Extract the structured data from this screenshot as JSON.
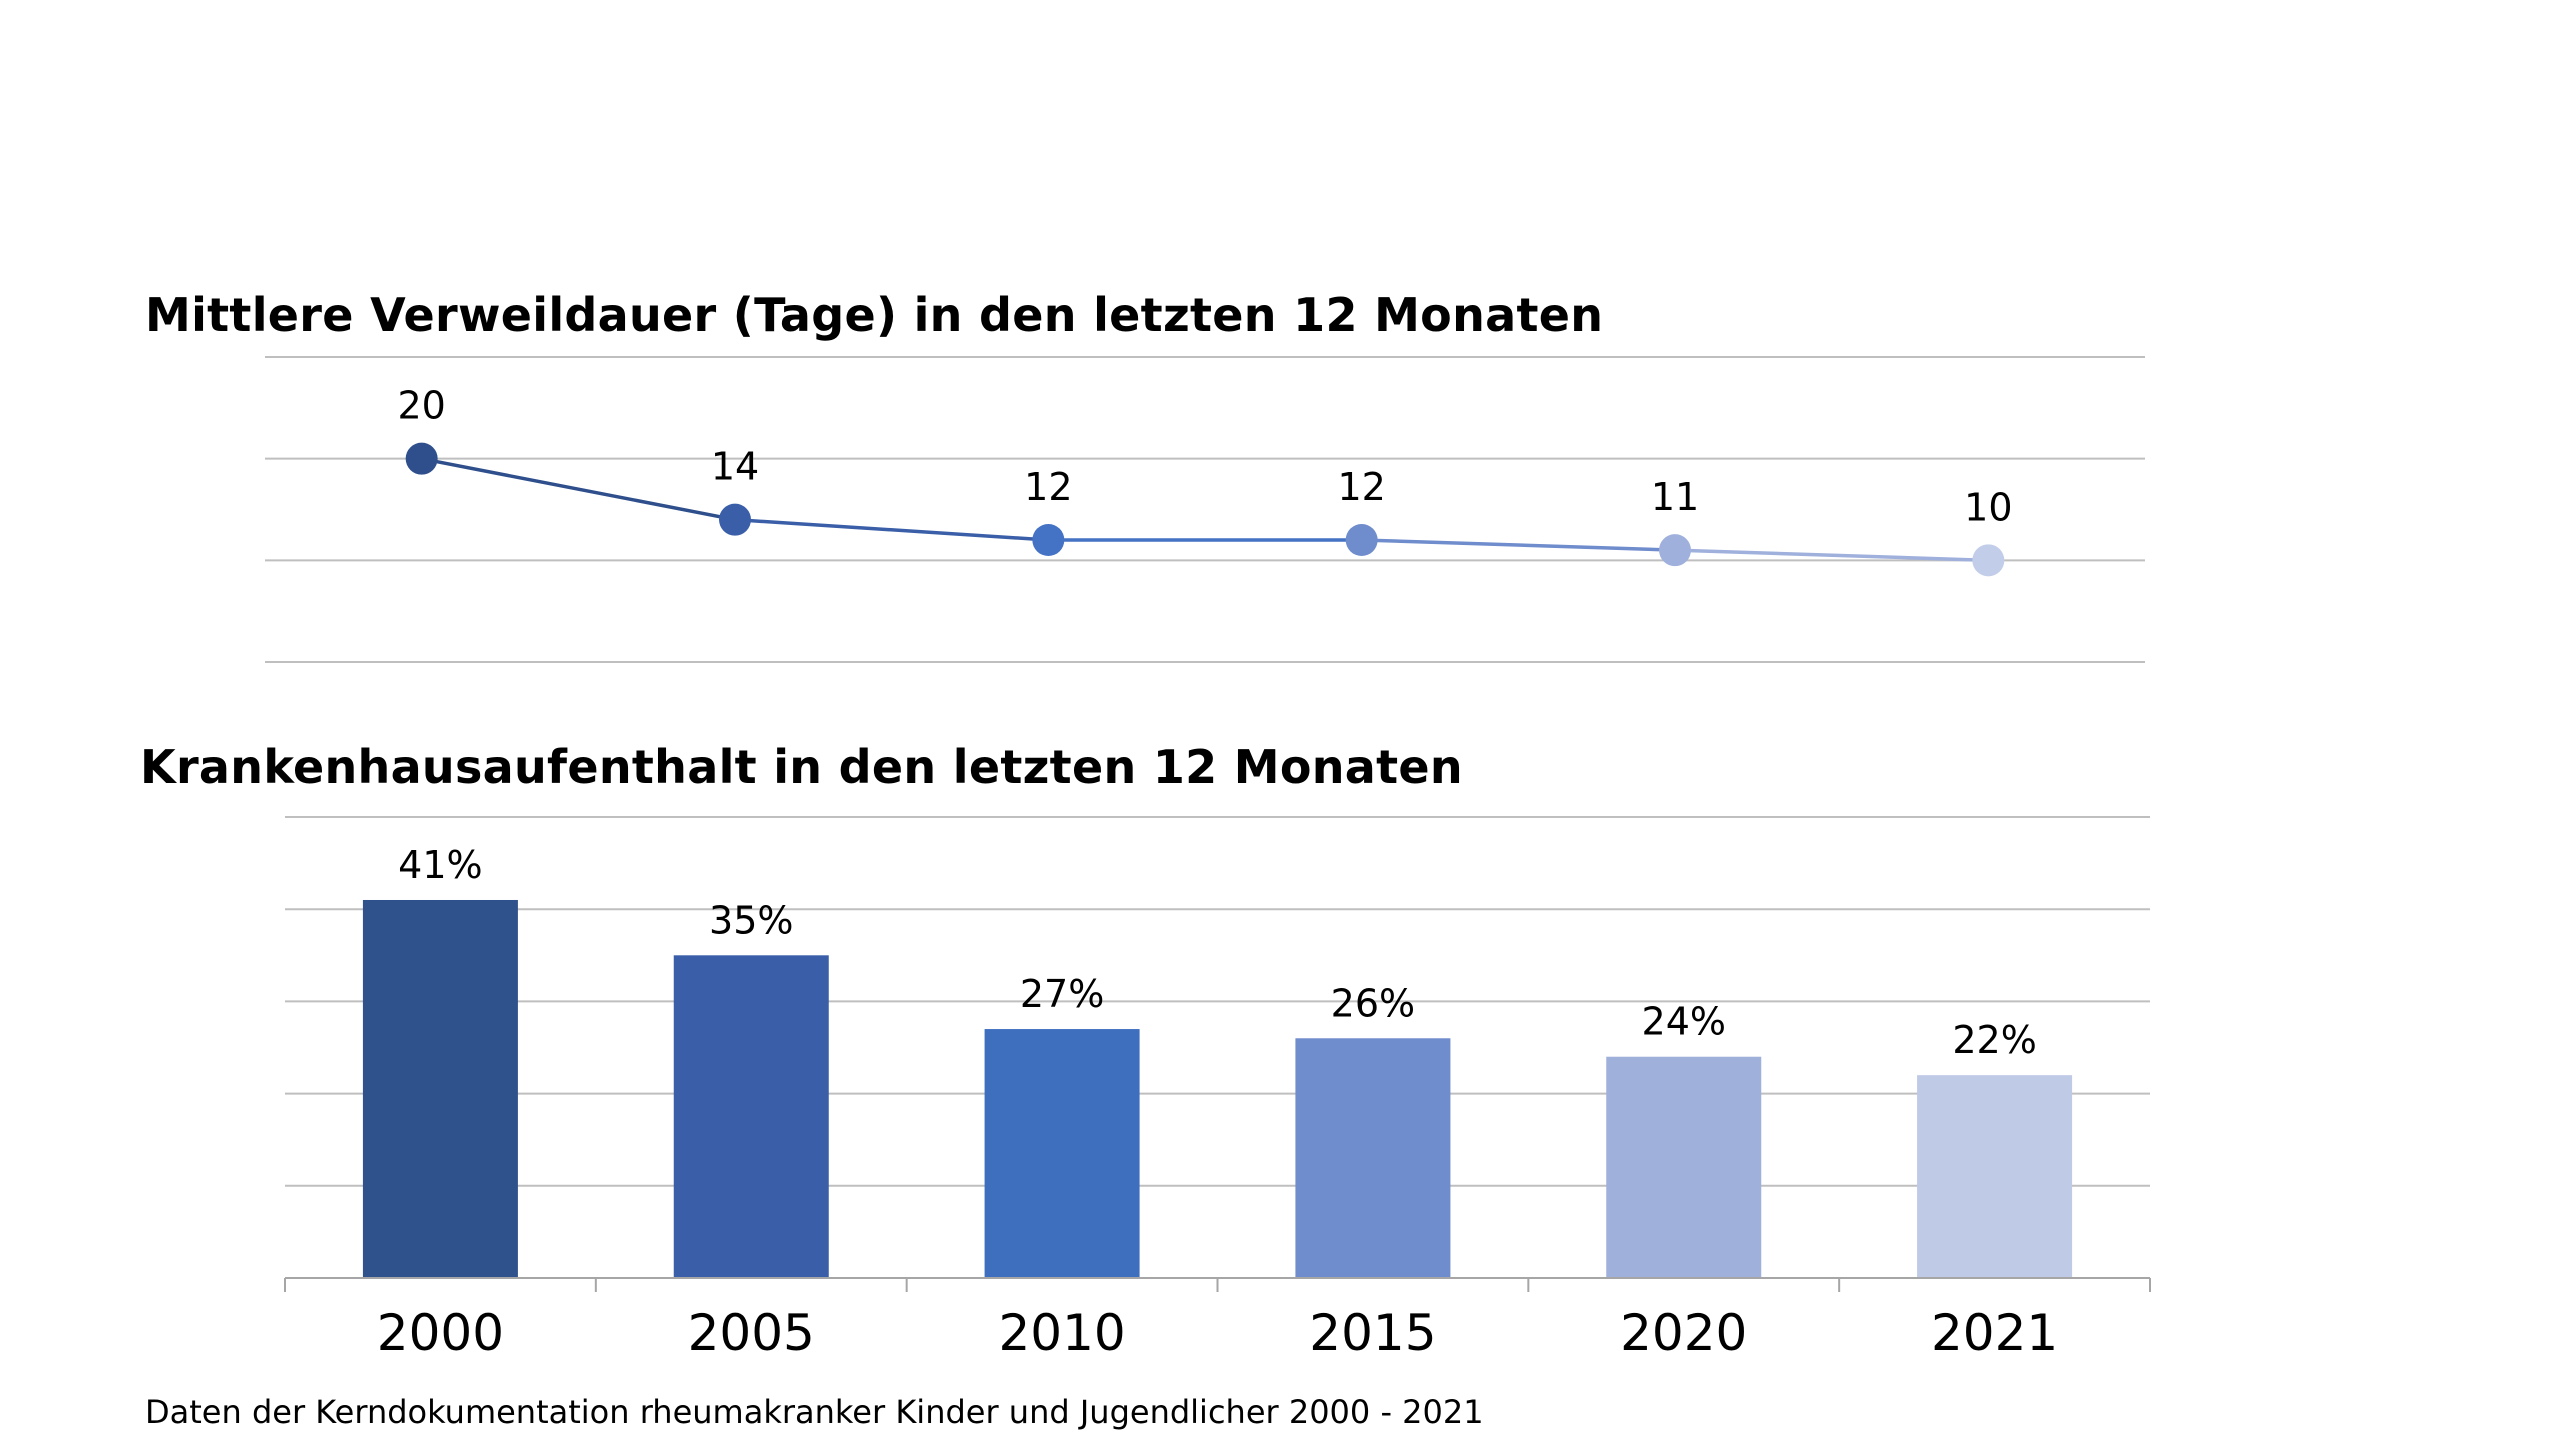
{
  "source_note": "Daten der Kerndokumentation rheumakranker Kinder und Jugendlicher 2000 - 2021",
  "chart_data": [
    {
      "type": "line",
      "title": "Mittlere Verweildauer (Tage) in den letzten 12 Monaten",
      "categories": [
        "2000",
        "2005",
        "2010",
        "2015",
        "2020",
        "2021"
      ],
      "values": [
        20,
        14,
        12,
        12,
        11,
        10
      ],
      "data_labels": [
        "20",
        "14",
        "12",
        "12",
        "11",
        "10"
      ],
      "ylim": [
        0,
        30
      ],
      "grid": true,
      "x_tick_labels_shown": false,
      "colors": [
        "#2e4f8c",
        "#3a5fa8",
        "#4472c4",
        "#6f8ccc",
        "#9fb0dc",
        "#c2cde9"
      ]
    },
    {
      "type": "bar",
      "title": "Krankenhausaufenthalt in den letzten 12 Monaten",
      "categories": [
        "2000",
        "2005",
        "2010",
        "2015",
        "2020",
        "2021"
      ],
      "values": [
        41,
        35,
        27,
        26,
        24,
        22
      ],
      "data_labels": [
        "41%",
        "35%",
        "27%",
        "26%",
        "24%",
        "22%"
      ],
      "ylim": [
        0,
        50
      ],
      "grid": true,
      "colors": [
        "#30528c",
        "#3a5fa8",
        "#3e6ebe",
        "#6f8ccc",
        "#9fb0da",
        "#bfcae6"
      ]
    }
  ]
}
